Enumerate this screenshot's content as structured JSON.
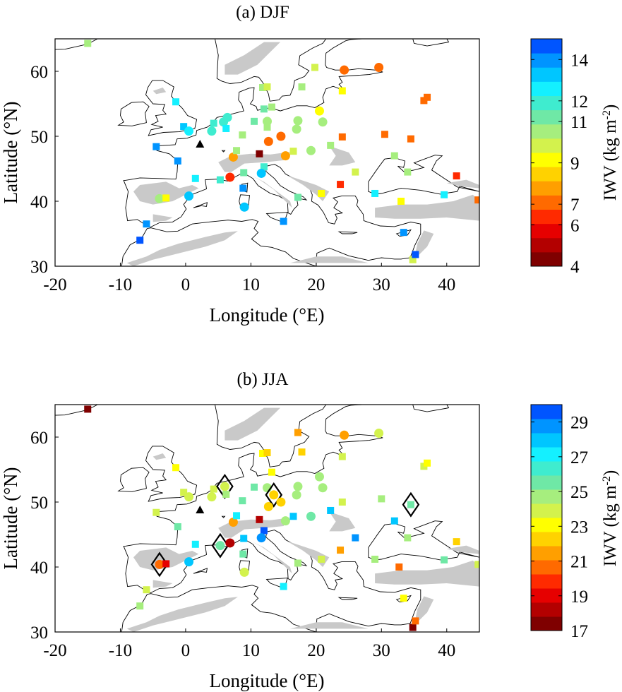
{
  "panels": [
    {
      "title": "(a) DJF",
      "xlabel": "Longitude (°E)",
      "ylabel": "Latitude (°N)",
      "xticks": [
        "-20",
        "-10",
        "0",
        "10",
        "20",
        "30",
        "40"
      ],
      "yticks": [
        "30",
        "40",
        "50",
        "60"
      ],
      "colorbar": {
        "label": "IWV (kg m",
        "label_sup": "-2",
        "label_end": ")",
        "ticks": [
          "4",
          "6",
          "7",
          "9",
          "11",
          "12",
          "14"
        ]
      }
    },
    {
      "title": "(b) JJA",
      "xlabel": "Longitude (°E)",
      "ylabel": "Latitude (°N)",
      "xticks": [
        "-20",
        "-10",
        "0",
        "10",
        "20",
        "30",
        "40"
      ],
      "yticks": [
        "30",
        "40",
        "50",
        "60"
      ],
      "colorbar": {
        "label": "IWV (kg m",
        "label_sup": "-2",
        "label_end": ")",
        "ticks": [
          "17",
          "19",
          "21",
          "23",
          "25",
          "27",
          "29"
        ]
      }
    }
  ],
  "chart_data": [
    {
      "type": "scatter",
      "title": "(a) DJF",
      "xlabel": "Longitude (°E)",
      "ylabel": "Latitude (°N)",
      "xlim": [
        -20,
        45
      ],
      "ylim": [
        30,
        65
      ],
      "colorbar": {
        "min": 4,
        "max": 15,
        "levels": 16,
        "tick_values": [
          4,
          6,
          7,
          9,
          11,
          12,
          14
        ]
      },
      "stations": [
        {
          "lon": -15.0,
          "lat": 64.3,
          "v": 10.5,
          "m": "s"
        },
        {
          "lon": -7.0,
          "lat": 34.0,
          "v": 14.5,
          "m": "s"
        },
        {
          "lon": -6.0,
          "lat": 36.5,
          "v": 14.2,
          "m": "s"
        },
        {
          "lon": -4.0,
          "lat": 40.4,
          "v": 10.6,
          "m": "c"
        },
        {
          "lon": -3.0,
          "lat": 40.5,
          "v": 9.3,
          "m": "s"
        },
        {
          "lon": 0.5,
          "lat": 40.8,
          "v": 13.3,
          "m": "c"
        },
        {
          "lon": 1.5,
          "lat": 43.5,
          "v": 12.3,
          "m": "s"
        },
        {
          "lon": -1.2,
          "lat": 46.2,
          "v": 13.7,
          "m": "s"
        },
        {
          "lon": -4.5,
          "lat": 48.4,
          "v": 14.0,
          "m": "s"
        },
        {
          "lon": -1.5,
          "lat": 55.3,
          "v": 12.5,
          "m": "s"
        },
        {
          "lon": -0.3,
          "lat": 51.5,
          "v": 13.4,
          "m": "s"
        },
        {
          "lon": 0.5,
          "lat": 50.8,
          "v": 12.7,
          "m": "c"
        },
        {
          "lon": 2.2,
          "lat": 48.8,
          "v": 0,
          "m": "t",
          "missing": true
        },
        {
          "lon": 4.0,
          "lat": 50.8,
          "v": 11.8,
          "m": "c"
        },
        {
          "lon": 4.3,
          "lat": 52.0,
          "v": 12.1,
          "m": "s"
        },
        {
          "lon": 5.8,
          "lat": 52.2,
          "v": 12.0,
          "m": "c"
        },
        {
          "lon": 6.2,
          "lat": 51.2,
          "v": 12.3,
          "m": "s"
        },
        {
          "lon": 6.4,
          "lat": 52.9,
          "v": 11.8,
          "m": "c"
        },
        {
          "lon": 5.3,
          "lat": 43.3,
          "v": 12.0,
          "m": "s"
        },
        {
          "lon": 6.8,
          "lat": 43.7,
          "v": 6.2,
          "m": "c"
        },
        {
          "lon": 7.3,
          "lat": 46.8,
          "v": 7.5,
          "m": "c"
        },
        {
          "lon": 7.8,
          "lat": 47.8,
          "v": 10.8,
          "m": "s"
        },
        {
          "lon": 8.7,
          "lat": 50.2,
          "v": 10.8,
          "m": "s"
        },
        {
          "lon": 8.9,
          "lat": 44.4,
          "v": 11.3,
          "m": "s"
        },
        {
          "lon": 8.8,
          "lat": 42.0,
          "v": 13.9,
          "m": "s"
        },
        {
          "lon": 9.0,
          "lat": 39.1,
          "v": 13.5,
          "m": "c"
        },
        {
          "lon": 10.5,
          "lat": 52.3,
          "v": 11.0,
          "m": "s"
        },
        {
          "lon": 11.3,
          "lat": 47.3,
          "v": 4.3,
          "m": "s"
        },
        {
          "lon": 12.0,
          "lat": 45.3,
          "v": 11.9,
          "m": "s"
        },
        {
          "lon": 11.6,
          "lat": 44.3,
          "v": 13.3,
          "m": "c"
        },
        {
          "lon": 11.8,
          "lat": 57.5,
          "v": 10.6,
          "m": "s"
        },
        {
          "lon": 12.5,
          "lat": 57.6,
          "v": 10.1,
          "m": "s"
        },
        {
          "lon": 12.0,
          "lat": 54.2,
          "v": 11.3,
          "m": "s"
        },
        {
          "lon": 13.2,
          "lat": 54.5,
          "v": 10.5,
          "m": "s"
        },
        {
          "lon": 12.5,
          "lat": 52.3,
          "v": 10.7,
          "m": "c"
        },
        {
          "lon": 12.5,
          "lat": 51.4,
          "v": 10.6,
          "m": "s"
        },
        {
          "lon": 12.7,
          "lat": 49.2,
          "v": 7.4,
          "m": "c"
        },
        {
          "lon": 14.6,
          "lat": 50.0,
          "v": 7.2,
          "m": "c"
        },
        {
          "lon": 15.3,
          "lat": 47.0,
          "v": 7.6,
          "m": "c"
        },
        {
          "lon": 16.5,
          "lat": 47.7,
          "v": 10.1,
          "m": "s"
        },
        {
          "lon": 17.0,
          "lat": 51.1,
          "v": 10.3,
          "m": "c"
        },
        {
          "lon": 17.2,
          "lat": 52.4,
          "v": 10.6,
          "m": "c"
        },
        {
          "lon": 15.0,
          "lat": 36.9,
          "v": 14.0,
          "m": "s"
        },
        {
          "lon": 17.8,
          "lat": 57.6,
          "v": 10.6,
          "m": "s"
        },
        {
          "lon": 17.2,
          "lat": 40.6,
          "v": 11.0,
          "m": "s"
        },
        {
          "lon": 19.2,
          "lat": 47.8,
          "v": 10.2,
          "m": "c"
        },
        {
          "lon": 20.5,
          "lat": 53.9,
          "v": 9.3,
          "m": "c"
        },
        {
          "lon": 21.0,
          "lat": 52.2,
          "v": 10.4,
          "m": "c"
        },
        {
          "lon": 20.8,
          "lat": 41.2,
          "v": 9.2,
          "m": "s"
        },
        {
          "lon": 22.2,
          "lat": 48.6,
          "v": 10.2,
          "m": "s"
        },
        {
          "lon": 19.8,
          "lat": 60.6,
          "v": 9.8,
          "m": "s"
        },
        {
          "lon": 23.7,
          "lat": 42.6,
          "v": 6.5,
          "m": "s"
        },
        {
          "lon": 24.0,
          "lat": 57.0,
          "v": 9.4,
          "m": "s"
        },
        {
          "lon": 24.3,
          "lat": 60.2,
          "v": 7.4,
          "m": "c"
        },
        {
          "lon": 24.0,
          "lat": 49.9,
          "v": 7.3,
          "m": "s"
        },
        {
          "lon": 26.0,
          "lat": 44.5,
          "v": 10.1,
          "m": "s"
        },
        {
          "lon": 29.0,
          "lat": 41.2,
          "v": 12.4,
          "m": "s"
        },
        {
          "lon": 29.6,
          "lat": 60.6,
          "v": 7.3,
          "m": "c"
        },
        {
          "lon": 30.5,
          "lat": 50.3,
          "v": 7.3,
          "m": "s"
        },
        {
          "lon": 32.0,
          "lat": 47.0,
          "v": 10.6,
          "m": "s"
        },
        {
          "lon": 33.0,
          "lat": 40.0,
          "v": 9.3,
          "m": "s"
        },
        {
          "lon": 33.4,
          "lat": 35.2,
          "v": 13.8,
          "m": "s"
        },
        {
          "lon": 34.0,
          "lat": 44.5,
          "v": 10.5,
          "m": "s"
        },
        {
          "lon": 34.5,
          "lat": 49.6,
          "v": 7.2,
          "m": "s"
        },
        {
          "lon": 34.8,
          "lat": 31.0,
          "v": 10.1,
          "m": "s"
        },
        {
          "lon": 35.2,
          "lat": 31.8,
          "v": 14.4,
          "m": "s"
        },
        {
          "lon": 36.5,
          "lat": 55.5,
          "v": 7.0,
          "m": "s"
        },
        {
          "lon": 37.0,
          "lat": 56.0,
          "v": 6.8,
          "m": "s"
        },
        {
          "lon": 39.6,
          "lat": 41.0,
          "v": 12.4,
          "m": "s"
        },
        {
          "lon": 41.5,
          "lat": 43.9,
          "v": 6.2,
          "m": "s"
        },
        {
          "lon": 44.8,
          "lat": 40.2,
          "v": 6.8,
          "m": "s"
        }
      ]
    },
    {
      "type": "scatter",
      "title": "(b) JJA",
      "xlabel": "Longitude (°E)",
      "ylabel": "Latitude (°N)",
      "xlim": [
        -20,
        45
      ],
      "ylim": [
        30,
        65
      ],
      "colorbar": {
        "min": 17,
        "max": 30,
        "levels": 16,
        "tick_values": [
          17,
          19,
          21,
          23,
          25,
          27,
          29
        ]
      },
      "stations": [
        {
          "lon": -15.0,
          "lat": 64.3,
          "v": 17.8,
          "m": "s"
        },
        {
          "lon": -7.0,
          "lat": 34.0,
          "v": 24.8,
          "m": "s"
        },
        {
          "lon": -6.0,
          "lat": 36.5,
          "v": 23.5,
          "m": "s"
        },
        {
          "lon": -4.0,
          "lat": 40.4,
          "v": 21.0,
          "m": "c",
          "diamond": true
        },
        {
          "lon": -3.0,
          "lat": 40.5,
          "v": 18.9,
          "m": "s"
        },
        {
          "lon": 0.5,
          "lat": 40.8,
          "v": 28.2,
          "m": "c"
        },
        {
          "lon": 1.5,
          "lat": 43.5,
          "v": 27.2,
          "m": "s"
        },
        {
          "lon": -1.2,
          "lat": 46.2,
          "v": 25.4,
          "m": "s"
        },
        {
          "lon": -4.5,
          "lat": 48.4,
          "v": 24.0,
          "m": "s"
        },
        {
          "lon": -1.5,
          "lat": 55.3,
          "v": 23.4,
          "m": "s"
        },
        {
          "lon": -0.3,
          "lat": 51.5,
          "v": 23.7,
          "m": "s"
        },
        {
          "lon": 0.5,
          "lat": 50.8,
          "v": 24.0,
          "m": "c"
        },
        {
          "lon": 2.2,
          "lat": 48.8,
          "v": 0,
          "m": "t",
          "missing": true
        },
        {
          "lon": 4.0,
          "lat": 50.8,
          "v": 24.2,
          "m": "c"
        },
        {
          "lon": 4.3,
          "lat": 52.0,
          "v": 23.9,
          "m": "s"
        },
        {
          "lon": 6.0,
          "lat": 52.4,
          "v": 23.6,
          "m": "c",
          "diamond": true
        },
        {
          "lon": 6.2,
          "lat": 51.2,
          "v": 24.5,
          "m": "s"
        },
        {
          "lon": 5.3,
          "lat": 43.3,
          "v": 25.7,
          "m": "c",
          "diamond": true
        },
        {
          "lon": 6.8,
          "lat": 43.7,
          "v": 18.6,
          "m": "c"
        },
        {
          "lon": 7.3,
          "lat": 46.9,
          "v": 21.5,
          "m": "c"
        },
        {
          "lon": 7.8,
          "lat": 47.9,
          "v": 26.9,
          "m": "s"
        },
        {
          "lon": 8.7,
          "lat": 50.2,
          "v": 25.4,
          "m": "s"
        },
        {
          "lon": 8.9,
          "lat": 44.4,
          "v": 28.0,
          "m": "s"
        },
        {
          "lon": 8.8,
          "lat": 42.0,
          "v": 25.6,
          "m": "s"
        },
        {
          "lon": 9.0,
          "lat": 39.2,
          "v": 24.2,
          "m": "c"
        },
        {
          "lon": 10.5,
          "lat": 52.3,
          "v": 25.4,
          "m": "s"
        },
        {
          "lon": 11.3,
          "lat": 47.3,
          "v": 18.0,
          "m": "s"
        },
        {
          "lon": 12.0,
          "lat": 45.6,
          "v": 29.8,
          "m": "s"
        },
        {
          "lon": 11.6,
          "lat": 44.5,
          "v": 28.8,
          "m": "c"
        },
        {
          "lon": 11.8,
          "lat": 57.5,
          "v": 22.7,
          "m": "s"
        },
        {
          "lon": 12.5,
          "lat": 57.6,
          "v": 22.0,
          "m": "s"
        },
        {
          "lon": 12.5,
          "lat": 52.2,
          "v": 24.6,
          "m": "c"
        },
        {
          "lon": 13.2,
          "lat": 54.6,
          "v": 23.0,
          "m": "s"
        },
        {
          "lon": 13.5,
          "lat": 51.1,
          "v": 22.5,
          "m": "c",
          "diamond": true
        },
        {
          "lon": 12.7,
          "lat": 49.3,
          "v": 22.6,
          "m": "c"
        },
        {
          "lon": 14.6,
          "lat": 50.0,
          "v": 22.4,
          "m": "c"
        },
        {
          "lon": 15.3,
          "lat": 47.1,
          "v": 24.5,
          "m": "c"
        },
        {
          "lon": 16.5,
          "lat": 47.8,
          "v": 28.1,
          "m": "s"
        },
        {
          "lon": 17.0,
          "lat": 51.1,
          "v": 25.0,
          "m": "c"
        },
        {
          "lon": 17.2,
          "lat": 52.4,
          "v": 24.6,
          "m": "c"
        },
        {
          "lon": 15.0,
          "lat": 37.0,
          "v": 27.2,
          "m": "s"
        },
        {
          "lon": 17.8,
          "lat": 57.7,
          "v": 22.5,
          "m": "s"
        },
        {
          "lon": 17.2,
          "lat": 40.6,
          "v": 24.5,
          "m": "s"
        },
        {
          "lon": 19.2,
          "lat": 47.8,
          "v": 25.4,
          "m": "c"
        },
        {
          "lon": 17.2,
          "lat": 60.7,
          "v": 21.4,
          "m": "s"
        },
        {
          "lon": 20.5,
          "lat": 53.9,
          "v": 24.6,
          "m": "c"
        },
        {
          "lon": 21.0,
          "lat": 52.2,
          "v": 24.8,
          "m": "c"
        },
        {
          "lon": 20.8,
          "lat": 41.2,
          "v": 23.8,
          "m": "s"
        },
        {
          "lon": 22.2,
          "lat": 48.7,
          "v": 27.8,
          "m": "s"
        },
        {
          "lon": 23.7,
          "lat": 42.6,
          "v": 21.2,
          "m": "s"
        },
        {
          "lon": 24.0,
          "lat": 57.0,
          "v": 23.5,
          "m": "s"
        },
        {
          "lon": 24.3,
          "lat": 60.3,
          "v": 21.8,
          "m": "c"
        },
        {
          "lon": 24.0,
          "lat": 50.0,
          "v": 24.2,
          "m": "s"
        },
        {
          "lon": 26.0,
          "lat": 44.5,
          "v": 28.5,
          "m": "s"
        },
        {
          "lon": 29.0,
          "lat": 41.2,
          "v": 24.9,
          "m": "s"
        },
        {
          "lon": 29.6,
          "lat": 60.6,
          "v": 23.5,
          "m": "c"
        },
        {
          "lon": 30.0,
          "lat": 50.5,
          "v": 24.9,
          "m": "s"
        },
        {
          "lon": 32.0,
          "lat": 47.1,
          "v": 27.6,
          "m": "s"
        },
        {
          "lon": 32.7,
          "lat": 40.0,
          "v": 20.3,
          "m": "s"
        },
        {
          "lon": 33.4,
          "lat": 35.2,
          "v": 22.7,
          "m": "s"
        },
        {
          "lon": 34.0,
          "lat": 44.5,
          "v": 24.6,
          "m": "s"
        },
        {
          "lon": 34.5,
          "lat": 49.6,
          "v": 25.7,
          "m": "s",
          "diamond": true
        },
        {
          "lon": 34.8,
          "lat": 30.7,
          "v": 17.3,
          "m": "s"
        },
        {
          "lon": 35.2,
          "lat": 31.7,
          "v": 21.0,
          "m": "s"
        },
        {
          "lon": 36.5,
          "lat": 55.5,
          "v": 24.3,
          "m": "s"
        },
        {
          "lon": 37.0,
          "lat": 56.0,
          "v": 23.4,
          "m": "s"
        },
        {
          "lon": 39.6,
          "lat": 41.1,
          "v": 25.9,
          "m": "s"
        },
        {
          "lon": 41.5,
          "lat": 43.9,
          "v": 22.3,
          "m": "s"
        },
        {
          "lon": 44.8,
          "lat": 40.4,
          "v": 24.1,
          "m": "s"
        }
      ]
    }
  ]
}
